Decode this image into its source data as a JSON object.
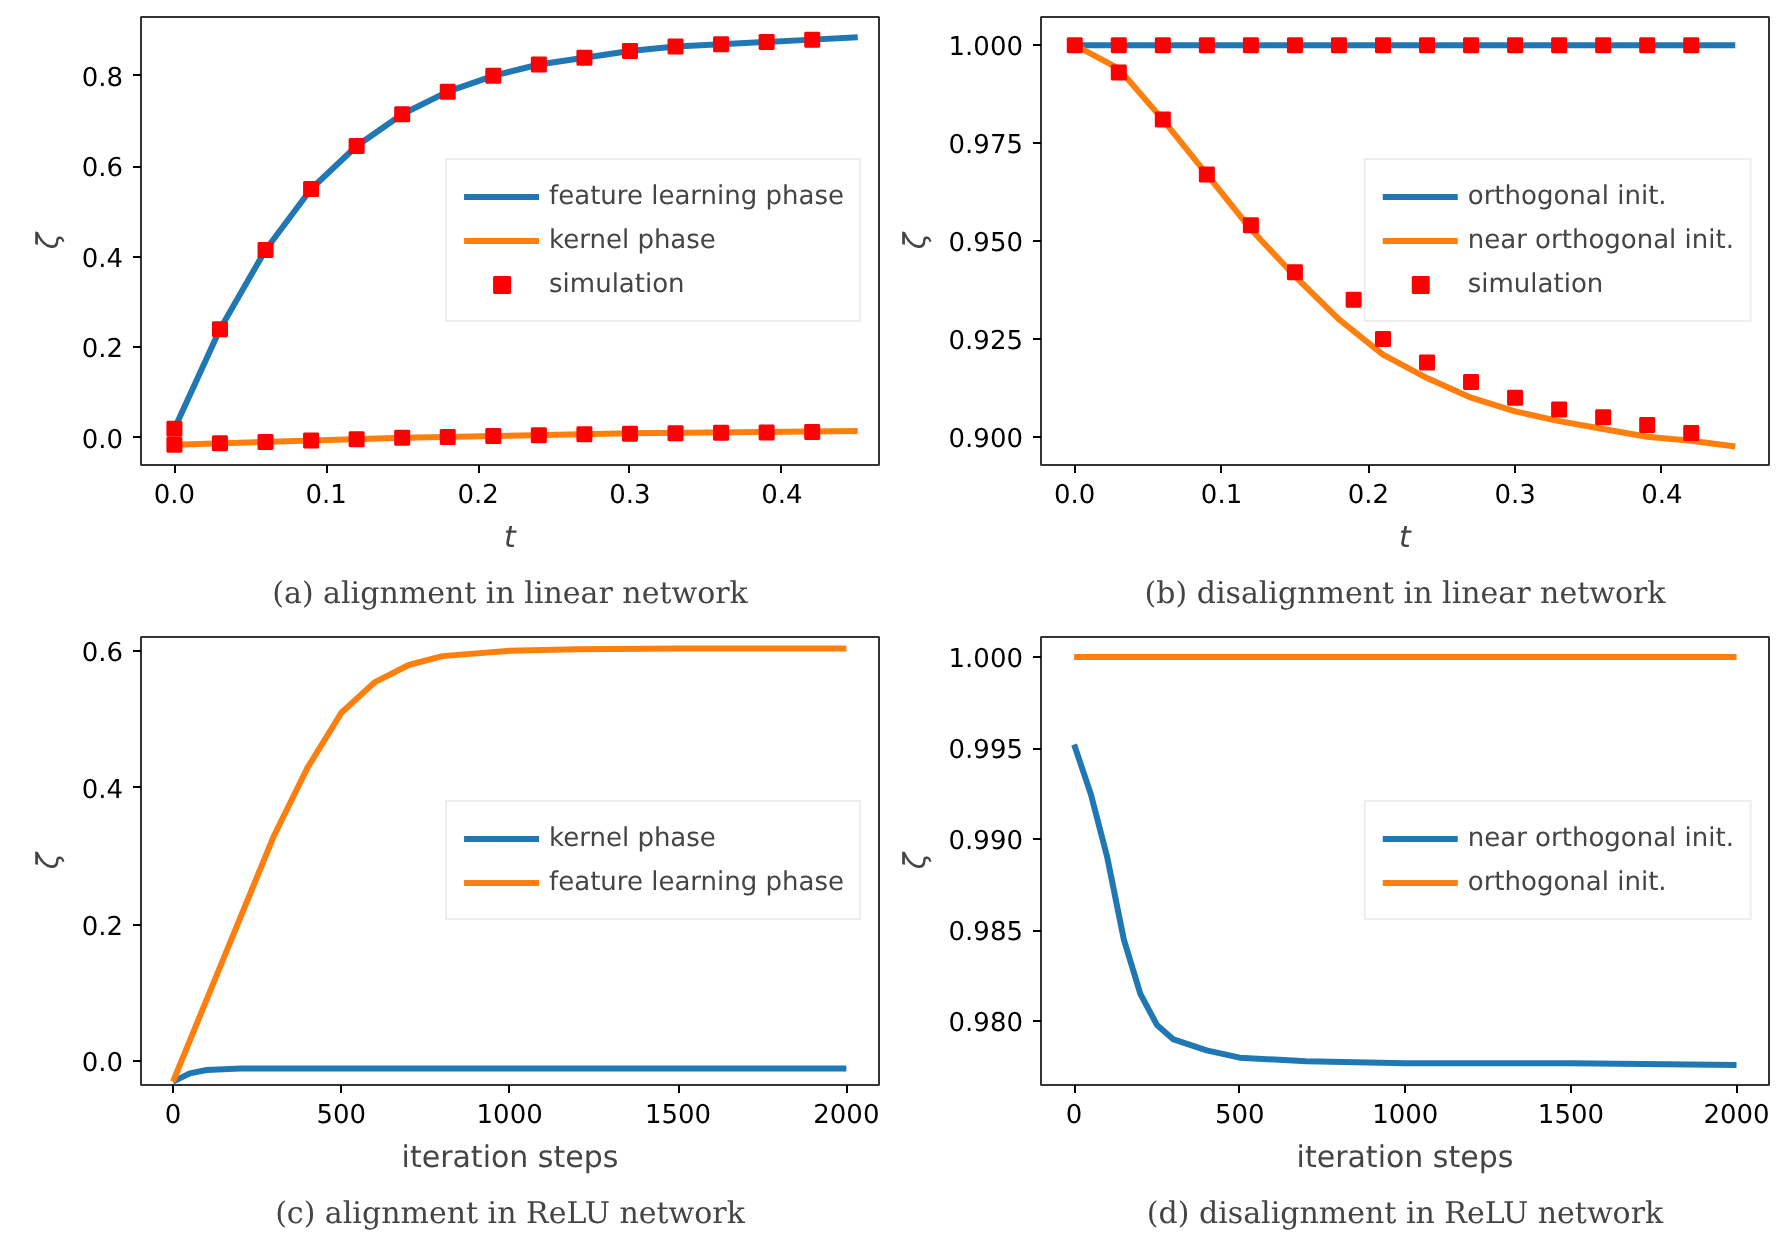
{
  "chart_data": [
    {
      "type": "line",
      "title": "(a) alignment in linear network",
      "xlabel": "t",
      "ylabel": "ζ",
      "xlim": [
        -0.022,
        0.464
      ],
      "ylim": [
        -0.06,
        0.93
      ],
      "xticks": [
        {
          "value": 0,
          "label": "0.0"
        },
        {
          "value": 0.1,
          "label": "0.1"
        },
        {
          "value": 0.2,
          "label": "0.2"
        },
        {
          "value": 0.3,
          "label": "0.3"
        },
        {
          "value": 0.4,
          "label": "0.4"
        }
      ],
      "yticks": [
        {
          "value": 0,
          "label": "0.0"
        },
        {
          "value": 0.2,
          "label": "0.2"
        },
        {
          "value": 0.4,
          "label": "0.4"
        },
        {
          "value": 0.6,
          "label": "0.6"
        },
        {
          "value": 0.8,
          "label": "0.8"
        }
      ],
      "grid": false,
      "legend": "right",
      "series": [
        {
          "name": "feature learning phase",
          "color": "#1f77b4",
          "x": [
            0,
            0.03,
            0.06,
            0.09,
            0.12,
            0.15,
            0.18,
            0.21,
            0.24,
            0.27,
            0.3,
            0.33,
            0.36,
            0.39,
            0.42,
            0.45
          ],
          "values": [
            0.02,
            0.24,
            0.415,
            0.55,
            0.645,
            0.715,
            0.765,
            0.8,
            0.825,
            0.84,
            0.855,
            0.865,
            0.87,
            0.875,
            0.88,
            0.885
          ]
        },
        {
          "name": "kernel phase",
          "color": "#ff7f0e",
          "x": [
            0,
            0.15,
            0.3,
            0.45
          ],
          "values": [
            -0.015,
            0.0,
            0.01,
            0.015
          ]
        },
        {
          "name": "simulation",
          "color": "#ff0000",
          "type": "scatter",
          "marker": "square",
          "x": [
            0,
            0.03,
            0.06,
            0.09,
            0.12,
            0.15,
            0.18,
            0.21,
            0.24,
            0.27,
            0.3,
            0.33,
            0.36,
            0.39,
            0.42,
            0,
            0.03,
            0.06,
            0.09,
            0.12,
            0.15,
            0.18,
            0.21,
            0.24,
            0.27,
            0.3,
            0.33,
            0.36,
            0.39,
            0.42
          ],
          "values": [
            0.02,
            0.24,
            0.415,
            0.55,
            0.645,
            0.715,
            0.765,
            0.8,
            0.825,
            0.84,
            0.855,
            0.865,
            0.87,
            0.875,
            0.88,
            -0.015,
            -0.012,
            -0.009,
            -0.006,
            -0.003,
            0.0,
            0.002,
            0.004,
            0.006,
            0.008,
            0.009,
            0.01,
            0.011,
            0.012,
            0.013
          ]
        }
      ]
    },
    {
      "type": "line",
      "title": "(b) disalignment in linear network",
      "xlabel": "t",
      "ylabel": "ζ",
      "xlim": [
        -0.023,
        0.473
      ],
      "ylim": [
        0.8928,
        1.0072
      ],
      "xticks": [
        {
          "value": 0,
          "label": "0.0"
        },
        {
          "value": 0.1,
          "label": "0.1"
        },
        {
          "value": 0.2,
          "label": "0.2"
        },
        {
          "value": 0.3,
          "label": "0.3"
        },
        {
          "value": 0.4,
          "label": "0.4"
        }
      ],
      "yticks": [
        {
          "value": 0.9,
          "label": "0.900"
        },
        {
          "value": 0.925,
          "label": "0.925"
        },
        {
          "value": 0.95,
          "label": "0.950"
        },
        {
          "value": 0.975,
          "label": "0.975"
        },
        {
          "value": 1.0,
          "label": "1.000"
        }
      ],
      "grid": false,
      "legend": "right",
      "series": [
        {
          "name": "orthogonal init.",
          "color": "#1f77b4",
          "x": [
            0,
            0.45
          ],
          "values": [
            1.0,
            1.0
          ]
        },
        {
          "name": "near orthogonal init.",
          "color": "#ff7f0e",
          "x": [
            0,
            0.03,
            0.06,
            0.09,
            0.12,
            0.15,
            0.18,
            0.21,
            0.24,
            0.27,
            0.3,
            0.33,
            0.36,
            0.39,
            0.42,
            0.45
          ],
          "values": [
            1.0,
            0.994,
            0.981,
            0.967,
            0.953,
            0.941,
            0.93,
            0.921,
            0.915,
            0.91,
            0.9065,
            0.904,
            0.902,
            0.9,
            0.899,
            0.8975
          ]
        },
        {
          "name": "simulation",
          "color": "#ff0000",
          "type": "scatter",
          "marker": "square",
          "x": [
            0,
            0.03,
            0.06,
            0.09,
            0.12,
            0.15,
            0.18,
            0.21,
            0.24,
            0.27,
            0.3,
            0.33,
            0.36,
            0.39,
            0.42,
            0.03,
            0.06,
            0.09,
            0.12,
            0.15,
            0.19,
            0.21,
            0.24,
            0.27,
            0.3,
            0.33,
            0.36,
            0.39,
            0.42
          ],
          "values": [
            1.0,
            1.0,
            1.0,
            1.0,
            1.0,
            1.0,
            1.0,
            1.0,
            1.0,
            1.0,
            1.0,
            1.0,
            1.0,
            1.0,
            1.0,
            0.993,
            0.981,
            0.967,
            0.954,
            0.942,
            0.935,
            0.925,
            0.919,
            0.914,
            0.91,
            0.907,
            0.905,
            0.903,
            0.901
          ]
        }
      ]
    },
    {
      "type": "line",
      "title": "(c) alignment in ReLU network",
      "xlabel": "iteration steps",
      "ylabel": "ζ",
      "xlim": [
        -95,
        2097
      ],
      "ylim": [
        -0.035,
        0.621
      ],
      "xticks": [
        0,
        500,
        1000,
        1500,
        2000
      ],
      "yticks": [
        {
          "value": 0,
          "label": "0.0"
        },
        {
          "value": 0.2,
          "label": "0.2"
        },
        {
          "value": 0.4,
          "label": "0.4"
        },
        {
          "value": 0.6,
          "label": "0.6"
        }
      ],
      "grid": false,
      "legend": "right",
      "series": [
        {
          "name": "kernel phase",
          "color": "#1f77b4",
          "x": [
            0,
            50,
            100,
            200,
            500,
            1000,
            2000
          ],
          "values": [
            -0.03,
            -0.018,
            -0.013,
            -0.011,
            -0.011,
            -0.011,
            -0.011
          ]
        },
        {
          "name": "feature learning phase",
          "color": "#ff7f0e",
          "x": [
            0,
            50,
            100,
            150,
            200,
            300,
            400,
            500,
            600,
            700,
            800,
            1000,
            1200,
            1500,
            2000
          ],
          "values": [
            -0.03,
            0.03,
            0.09,
            0.15,
            0.21,
            0.33,
            0.43,
            0.51,
            0.555,
            0.58,
            0.593,
            0.601,
            0.603,
            0.604,
            0.604
          ]
        }
      ]
    },
    {
      "type": "line",
      "title": "(d) disalignment in ReLU network",
      "xlabel": "iteration steps",
      "ylabel": "ζ",
      "xlim": [
        -100,
        2098
      ],
      "ylim": [
        0.9765,
        1.0011
      ],
      "xticks": [
        0,
        500,
        1000,
        1500,
        2000
      ],
      "yticks": [
        {
          "value": 0.98,
          "label": "0.980"
        },
        {
          "value": 0.985,
          "label": "0.985"
        },
        {
          "value": 0.99,
          "label": "0.990"
        },
        {
          "value": 0.995,
          "label": "0.995"
        },
        {
          "value": 1.0,
          "label": "1.000"
        }
      ],
      "grid": false,
      "legend": "right",
      "series": [
        {
          "name": "near orthogonal init.",
          "color": "#1f77b4",
          "x": [
            0,
            50,
            100,
            150,
            200,
            250,
            300,
            400,
            500,
            700,
            1000,
            1500,
            2000
          ],
          "values": [
            0.9952,
            0.9925,
            0.989,
            0.9845,
            0.9815,
            0.9798,
            0.979,
            0.9784,
            0.978,
            0.9778,
            0.9777,
            0.9777,
            0.9776
          ]
        },
        {
          "name": "orthogonal init.",
          "color": "#ff7f0e",
          "x": [
            0,
            2000
          ],
          "values": [
            1.0,
            1.0
          ]
        }
      ]
    }
  ]
}
